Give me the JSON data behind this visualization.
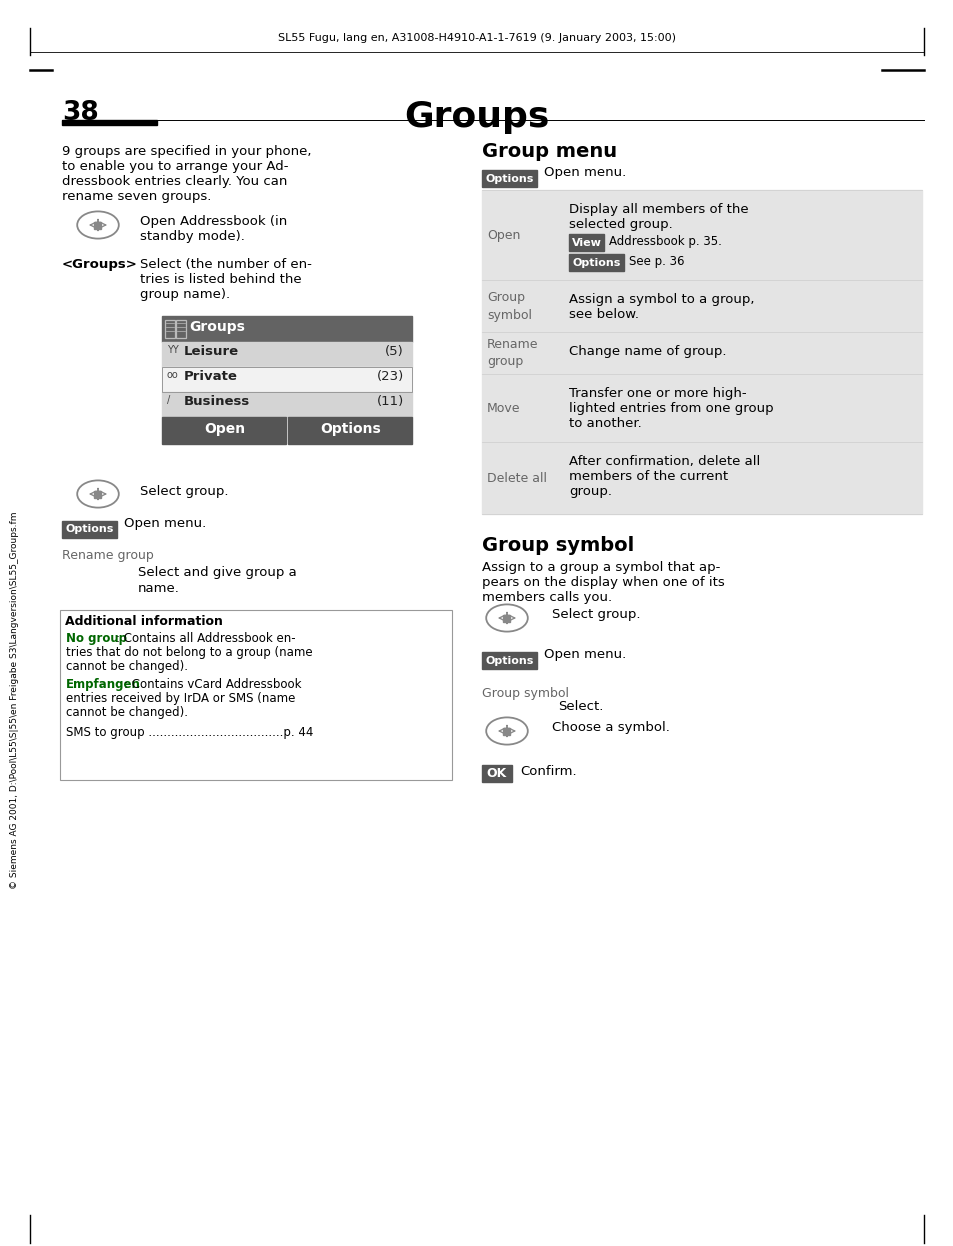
{
  "header_text": "SL55 Fugu, lang en, A31008-H4910-A1-1-7619 (9. January 2003, 15:00)",
  "page_number": "38",
  "page_title": "Groups",
  "sidebar_text": "© Siemens AG 2001, D:\\Pool\\L55\\S|55\\en Freigabe S3\\Langversion\\SL55_Groups.fm",
  "left_body_lines": [
    "9 groups are specified in your phone,",
    "to enable you to arrange your Ad-",
    "dressbook entries clearly. You can",
    "rename seven groups."
  ],
  "nav_text1": [
    "Open Addressbook (in",
    "standby mode)."
  ],
  "groups_label": "<Groups>",
  "groups_desc": [
    "Select (the number of en-",
    "tries is listed behind the",
    "group name)."
  ],
  "menu_title": "Groups",
  "menu_rows": [
    {
      "label": "Leisure",
      "count": "(5)",
      "selected": false
    },
    {
      "label": "Private",
      "count": "(23)",
      "selected": true
    },
    {
      "label": "Business",
      "count": "(11)",
      "selected": false
    }
  ],
  "menu_btn1": "Open",
  "menu_btn2": "Options",
  "nav_text2": "Select group.",
  "options_desc": "Open menu.",
  "rename_label": "Rename group",
  "rename_desc": [
    "Select and give group a",
    "name."
  ],
  "addl_title": "Additional information",
  "addl_nogroup_bold": "No group",
  "addl_nogroup_lines": [
    ": Contains all Addressbook en-",
    "tries that do not belong to a group (name",
    "cannot be changed)."
  ],
  "addl_empfangen_bold": "Empfangen",
  "addl_empfangen_lines": [
    ": Contains vCard Addressbook",
    "entries received by IrDA or SMS (name",
    "cannot be changed)."
  ],
  "addl_sms": "SMS to group ....................................p. 44",
  "right_title1": "Group menu",
  "right_options_desc": "Open menu.",
  "right_table_rows": [
    {
      "col1": "Open",
      "col2": [
        "Display all members of the",
        "selected group."
      ],
      "view_btn": true,
      "view_text": "Addressbook p. 35.",
      "opt_btn": true,
      "opt_text": "See p. 36"
    },
    {
      "col1": "Group\nsymbol",
      "col2": [
        "Assign a symbol to a group,",
        "see below."
      ],
      "view_btn": false,
      "opt_btn": false
    },
    {
      "col1": "Rename\ngroup",
      "col2": [
        "Change name of group."
      ],
      "view_btn": false,
      "opt_btn": false
    },
    {
      "col1": "Move",
      "col2": [
        "Transfer one or more high-",
        "lighted entries from one group",
        "to another."
      ],
      "view_btn": false,
      "opt_btn": false
    },
    {
      "col1": "Delete all",
      "col2": [
        "After confirmation, delete all",
        "members of the current",
        "group."
      ],
      "view_btn": false,
      "opt_btn": false
    }
  ],
  "right_title2": "Group symbol",
  "gs_desc": [
    "Assign to a group a symbol that ap-",
    "pears on the display when one of its",
    "members calls you."
  ],
  "gs_steps": [
    {
      "type": "nav",
      "text": "Select group."
    },
    {
      "type": "options",
      "text": "Open menu."
    },
    {
      "type": "label",
      "label": "Group symbol",
      "text": "Select."
    },
    {
      "type": "nav",
      "text": "Choose a symbol."
    },
    {
      "type": "ok",
      "text": "Confirm."
    }
  ],
  "bg": "#ffffff",
  "dark": "#555555",
  "light_gray": "#e4e4e4",
  "mid_gray": "#888888",
  "text_gray": "#666666",
  "green": "#006600",
  "white": "#ffffff",
  "black": "#000000",
  "menu_dark": "#636363",
  "menu_light": "#d4d4d4"
}
